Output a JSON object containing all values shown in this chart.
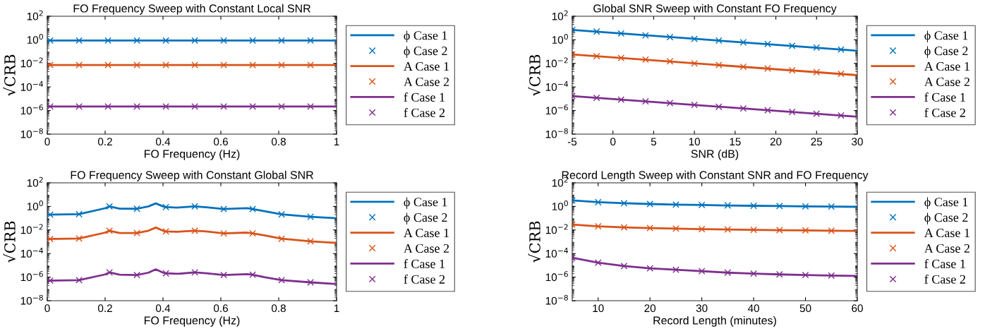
{
  "chart_data": [
    {
      "type": "line",
      "title": "FO Frequency Sweep with Constant Local SNR",
      "xlabel": "FO Frequency (Hz)",
      "ylabel": "√CRB",
      "log": "y",
      "legend": "right",
      "grid": false,
      "xlim": [
        0,
        1
      ],
      "xticks": [
        0,
        0.2,
        0.4,
        0.6,
        0.8,
        1
      ],
      "ylim": [
        1e-08,
        100
      ],
      "yticks": [
        {
          "value": 1e-08,
          "label": "10$^{−8}$"
        },
        {
          "value": 1e-06,
          "label": "10$^{−6}$"
        },
        {
          "value": 0.0001,
          "label": "10$^{−4}$"
        },
        {
          "value": 0.01,
          "label": "10$^{−2}$"
        },
        {
          "value": 1,
          "label": "10$^{0}$"
        },
        {
          "value": 100,
          "label": "10$^{2}$"
        }
      ],
      "series": [
        {
          "name": "ϕ Case 1",
          "type": "line",
          "color": "#0072bd",
          "x": [
            0,
            1
          ],
          "values": [
            0.87,
            0.87
          ]
        },
        {
          "name": "ϕ Case 2",
          "type": "scatter",
          "marker": "cross",
          "color": "#0072bd",
          "x": [
            0.01,
            0.11,
            0.21,
            0.31,
            0.41,
            0.51,
            0.61,
            0.71,
            0.81,
            0.91
          ],
          "values": [
            0.87,
            0.87,
            0.87,
            0.87,
            0.87,
            0.87,
            0.87,
            0.87,
            0.87,
            0.87
          ]
        },
        {
          "name": "A Case 1",
          "type": "line",
          "color": "#d95319",
          "x": [
            0,
            1
          ],
          "values": [
            0.0072,
            0.0072
          ]
        },
        {
          "name": "A Case 2",
          "type": "scatter",
          "marker": "cross",
          "color": "#d95319",
          "x": [
            0.01,
            0.11,
            0.21,
            0.31,
            0.41,
            0.51,
            0.61,
            0.71,
            0.81,
            0.91
          ],
          "values": [
            0.0072,
            0.0072,
            0.0072,
            0.0072,
            0.0072,
            0.0072,
            0.0072,
            0.0072,
            0.0072,
            0.0072
          ]
        },
        {
          "name": "f Case 1",
          "type": "line",
          "color": "#7e2f8e",
          "x": [
            0,
            1
          ],
          "values": [
            2.2e-06,
            2.2e-06
          ]
        },
        {
          "name": "f Case 2",
          "type": "scatter",
          "marker": "cross",
          "color": "#7e2f8e",
          "x": [
            0.01,
            0.11,
            0.21,
            0.31,
            0.41,
            0.51,
            0.61,
            0.71,
            0.81,
            0.91
          ],
          "values": [
            2.2e-06,
            2.2e-06,
            2.2e-06,
            2.2e-06,
            2.2e-06,
            2.2e-06,
            2.2e-06,
            2.2e-06,
            2.2e-06,
            2.2e-06
          ]
        }
      ]
    },
    {
      "type": "line",
      "title": "Global SNR Sweep with Constant FO Frequency",
      "xlabel": "SNR (dB)",
      "ylabel": "√CRB",
      "log": "y",
      "legend": "right",
      "grid": false,
      "xlim": [
        -5,
        30
      ],
      "xticks": [
        -5,
        0,
        5,
        10,
        15,
        20,
        25,
        30
      ],
      "ylim": [
        1e-08,
        100
      ],
      "yticks": [
        {
          "value": 1e-08,
          "label": "10$^{−8}$"
        },
        {
          "value": 1e-06,
          "label": "10$^{−6}$"
        },
        {
          "value": 0.0001,
          "label": "10$^{−4}$"
        },
        {
          "value": 0.01,
          "label": "10$^{−2}$"
        },
        {
          "value": 1,
          "label": "10$^{0}$"
        },
        {
          "value": 100,
          "label": "10$^{2}$"
        }
      ],
      "series": [
        {
          "name": "ϕ Case 1",
          "type": "line",
          "color": "#0072bd",
          "x": [
            -5,
            30
          ],
          "values": [
            6.9,
            0.12
          ]
        },
        {
          "name": "ϕ Case 2",
          "type": "scatter",
          "marker": "cross",
          "color": "#0072bd",
          "x": [
            -5,
            -2,
            1,
            4,
            7,
            10,
            13,
            16,
            19,
            22,
            25,
            28
          ],
          "values": [
            6.9,
            5.0,
            3.5,
            2.4,
            1.7,
            1.2,
            0.87,
            0.61,
            0.44,
            0.31,
            0.22,
            0.15
          ]
        },
        {
          "name": "A Case 1",
          "type": "line",
          "color": "#d95319",
          "x": [
            -5,
            30
          ],
          "values": [
            0.058,
            0.001
          ]
        },
        {
          "name": "A Case 2",
          "type": "scatter",
          "marker": "cross",
          "color": "#d95319",
          "x": [
            -5,
            -2,
            1,
            4,
            7,
            10,
            13,
            16,
            19,
            22,
            25,
            28
          ],
          "values": [
            0.058,
            0.041,
            0.029,
            0.021,
            0.015,
            0.01,
            0.0073,
            0.0052,
            0.0037,
            0.0026,
            0.0018,
            0.0013
          ]
        },
        {
          "name": "f Case 1",
          "type": "line",
          "color": "#7e2f8e",
          "x": [
            -5,
            30
          ],
          "values": [
            1.7e-05,
            3e-07
          ]
        },
        {
          "name": "f Case 2",
          "type": "scatter",
          "marker": "cross",
          "color": "#7e2f8e",
          "x": [
            -5,
            -2,
            1,
            4,
            7,
            10,
            13,
            16,
            19,
            22,
            25,
            28
          ],
          "values": [
            1.7e-05,
            1.2e-05,
            8.5e-06,
            6e-06,
            4.3e-06,
            3e-06,
            2.1e-06,
            1.5e-06,
            1.07e-06,
            7.6e-07,
            5.4e-07,
            3.8e-07
          ]
        }
      ]
    },
    {
      "type": "line",
      "title": "FO Frequency Sweep with Constant Global SNR",
      "xlabel": "FO Frequency (Hz)",
      "ylabel": "√CRB",
      "log": "y",
      "legend": "right",
      "grid": false,
      "xlim": [
        0,
        1
      ],
      "xticks": [
        0,
        0.2,
        0.4,
        0.6,
        0.8,
        1
      ],
      "ylim": [
        1e-08,
        100
      ],
      "yticks": [
        {
          "value": 1e-08,
          "label": "10$^{−8}$"
        },
        {
          "value": 1e-06,
          "label": "10$^{−6}$"
        },
        {
          "value": 0.0001,
          "label": "10$^{−4}$"
        },
        {
          "value": 0.01,
          "label": "10$^{−2}$"
        },
        {
          "value": 1,
          "label": "10$^{0}$"
        },
        {
          "value": 100,
          "label": "10$^{2}$"
        }
      ],
      "series": [
        {
          "name": "ϕ Case 1",
          "type": "line",
          "color": "#0072bd",
          "x": [
            0,
            0.11,
            0.2,
            0.215,
            0.25,
            0.31,
            0.35,
            0.375,
            0.4,
            0.41,
            0.45,
            0.51,
            0.55,
            0.61,
            0.69,
            0.71,
            0.75,
            0.81,
            0.91,
            1
          ],
          "values": [
            0.2,
            0.22,
            0.7,
            1.0,
            0.65,
            0.63,
            1.0,
            1.8,
            1.0,
            0.87,
            0.8,
            1.0,
            0.85,
            0.6,
            0.7,
            0.6,
            0.4,
            0.21,
            0.13,
            0.1
          ]
        },
        {
          "name": "ϕ Case 2",
          "type": "scatter",
          "marker": "cross",
          "color": "#0072bd",
          "x": [
            0.01,
            0.11,
            0.215,
            0.31,
            0.41,
            0.51,
            0.61,
            0.71,
            0.81,
            0.91
          ],
          "values": [
            0.2,
            0.22,
            1.0,
            0.63,
            0.87,
            1.0,
            0.6,
            0.6,
            0.21,
            0.13
          ]
        },
        {
          "name": "A Case 1",
          "type": "line",
          "color": "#d95319",
          "x": [
            0,
            0.11,
            0.2,
            0.215,
            0.25,
            0.31,
            0.35,
            0.375,
            0.4,
            0.41,
            0.45,
            0.51,
            0.55,
            0.61,
            0.69,
            0.71,
            0.75,
            0.81,
            0.91,
            1
          ],
          "values": [
            0.0017,
            0.0019,
            0.006,
            0.0087,
            0.0055,
            0.0055,
            0.0087,
            0.016,
            0.0087,
            0.0075,
            0.007,
            0.0087,
            0.0075,
            0.0052,
            0.006,
            0.0052,
            0.0035,
            0.0018,
            0.0011,
            0.0008
          ]
        },
        {
          "name": "A Case 2",
          "type": "scatter",
          "marker": "cross",
          "color": "#d95319",
          "x": [
            0.01,
            0.11,
            0.215,
            0.31,
            0.41,
            0.51,
            0.61,
            0.71,
            0.81,
            0.91
          ],
          "values": [
            0.0017,
            0.0019,
            0.0087,
            0.0055,
            0.0075,
            0.0087,
            0.0052,
            0.0052,
            0.0018,
            0.0011
          ]
        },
        {
          "name": "f Case 1",
          "type": "line",
          "color": "#7e2f8e",
          "x": [
            0,
            0.11,
            0.2,
            0.215,
            0.25,
            0.31,
            0.35,
            0.375,
            0.4,
            0.41,
            0.45,
            0.51,
            0.55,
            0.61,
            0.69,
            0.71,
            0.75,
            0.81,
            0.91,
            1
          ],
          "values": [
            5e-07,
            5.5e-07,
            1.7e-06,
            2.5e-06,
            1.6e-06,
            1.5e-06,
            2.4e-06,
            4.6e-06,
            2.4e-06,
            2.1e-06,
            1.9e-06,
            2.5e-06,
            2.1e-06,
            1.5e-06,
            1.8e-06,
            1.6e-06,
            1e-06,
            5.5e-07,
            3.6e-07,
            2.6e-07
          ]
        },
        {
          "name": "f Case 2",
          "type": "scatter",
          "marker": "cross",
          "color": "#7e2f8e",
          "x": [
            0.01,
            0.11,
            0.215,
            0.31,
            0.41,
            0.51,
            0.61,
            0.71,
            0.81,
            0.91
          ],
          "values": [
            5e-07,
            5.5e-07,
            2.5e-06,
            1.5e-06,
            2.1e-06,
            2.5e-06,
            1.5e-06,
            1.6e-06,
            5.5e-07,
            3.6e-07
          ]
        }
      ]
    },
    {
      "type": "line",
      "title": "Record Length Sweep with Constant SNR and FO Frequency",
      "xlabel": "Record Length (minutes)",
      "ylabel": "√CRB",
      "log": "y",
      "legend": "right",
      "grid": false,
      "xlim": [
        5,
        60
      ],
      "xticks": [
        10,
        20,
        30,
        40,
        50,
        60
      ],
      "ylim": [
        1e-08,
        100
      ],
      "yticks": [
        {
          "value": 1e-08,
          "label": "10$^{−8}$"
        },
        {
          "value": 1e-06,
          "label": "10$^{−6}$"
        },
        {
          "value": 0.0001,
          "label": "10$^{−4}$"
        },
        {
          "value": 0.01,
          "label": "10$^{−2}$"
        },
        {
          "value": 1,
          "label": "10$^{0}$"
        },
        {
          "value": 100,
          "label": "10$^{2}$"
        }
      ],
      "series": [
        {
          "name": "ϕ Case 1",
          "type": "line",
          "color": "#0072bd",
          "x": [
            5,
            10,
            15,
            20,
            25,
            30,
            35,
            40,
            45,
            50,
            55,
            60
          ],
          "values": [
            3.2,
            2.26,
            1.85,
            1.6,
            1.43,
            1.31,
            1.21,
            1.13,
            1.07,
            1.01,
            0.96,
            0.92
          ]
        },
        {
          "name": "ϕ Case 2",
          "type": "scatter",
          "marker": "cross",
          "color": "#0072bd",
          "x": [
            5,
            10,
            15,
            20,
            25,
            30,
            35,
            40,
            45,
            50,
            55
          ],
          "values": [
            3.2,
            2.26,
            1.85,
            1.6,
            1.43,
            1.31,
            1.21,
            1.13,
            1.07,
            1.01,
            0.96
          ]
        },
        {
          "name": "A Case 1",
          "type": "line",
          "color": "#d95319",
          "x": [
            5,
            10,
            15,
            20,
            25,
            30,
            35,
            40,
            45,
            50,
            55,
            60
          ],
          "values": [
            0.029,
            0.0205,
            0.0167,
            0.0145,
            0.013,
            0.0118,
            0.011,
            0.0103,
            0.0097,
            0.0092,
            0.0087,
            0.0084
          ]
        },
        {
          "name": "A Case 2",
          "type": "scatter",
          "marker": "cross",
          "color": "#d95319",
          "x": [
            5,
            10,
            15,
            20,
            25,
            30,
            35,
            40,
            45,
            50,
            55
          ],
          "values": [
            0.029,
            0.0205,
            0.0167,
            0.0145,
            0.013,
            0.0118,
            0.011,
            0.0103,
            0.0097,
            0.0092,
            0.0087
          ]
        },
        {
          "name": "f Case 1",
          "type": "line",
          "color": "#7e2f8e",
          "x": [
            5,
            10,
            15,
            20,
            25,
            30,
            35,
            40,
            45,
            50,
            55,
            60
          ],
          "values": [
            4.4e-05,
            1.7e-05,
            8.7e-06,
            5.6e-06,
            4.2e-06,
            3.2e-06,
            2.4e-06,
            2e-06,
            1.7e-06,
            1.5e-06,
            1.35e-06,
            1.25e-06
          ]
        },
        {
          "name": "f Case 2",
          "type": "scatter",
          "marker": "cross",
          "color": "#7e2f8e",
          "x": [
            5,
            10,
            15,
            20,
            25,
            30,
            35,
            40,
            45,
            50,
            55
          ],
          "values": [
            4.4e-05,
            1.7e-05,
            8.7e-06,
            5.6e-06,
            4.2e-06,
            3.2e-06,
            2.4e-06,
            2e-06,
            1.7e-06,
            1.5e-06,
            1.35e-06
          ]
        }
      ]
    }
  ]
}
